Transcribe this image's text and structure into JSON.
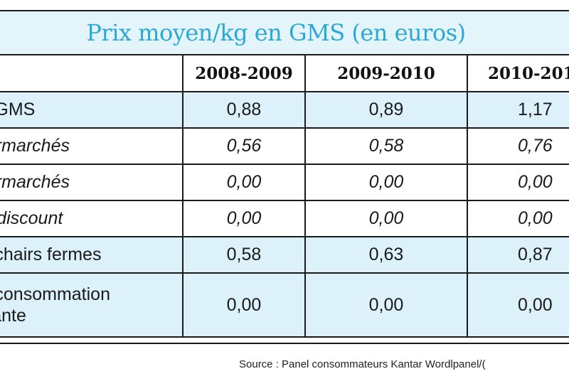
{
  "title": "Prix moyen/kg en GMS (en euros)",
  "columns": [
    "",
    "2008-2009",
    "2009-2010",
    "2010-201"
  ],
  "rows": [
    {
      "label": "al GMS",
      "values": [
        "0,88",
        "0,89",
        "1,17"
      ],
      "style": "blue"
    },
    {
      "label": "permarchés",
      "values": [
        "0,56",
        "0,58",
        "0,76"
      ],
      "style": "italic"
    },
    {
      "label": "permarchés",
      "values": [
        "0,00",
        "0,00",
        "0,00"
      ],
      "style": "italic"
    },
    {
      "label": "rd discount",
      "values": [
        "0,00",
        "0,00",
        "0,00"
      ],
      "style": "italic"
    },
    {
      "label": "al chairs fermes",
      "values": [
        "0,58",
        "0,63",
        "0,87"
      ],
      "style": "blue"
    },
    {
      "label": "al consommation\nurante",
      "values": [
        "0,00",
        "0,00",
        "0,00"
      ],
      "style": "blue"
    }
  ],
  "source": "Source : Panel consommateurs Kantar Wordlpanel/(",
  "colors": {
    "title": "#2ca8d6",
    "band": "#dcf1fa"
  }
}
